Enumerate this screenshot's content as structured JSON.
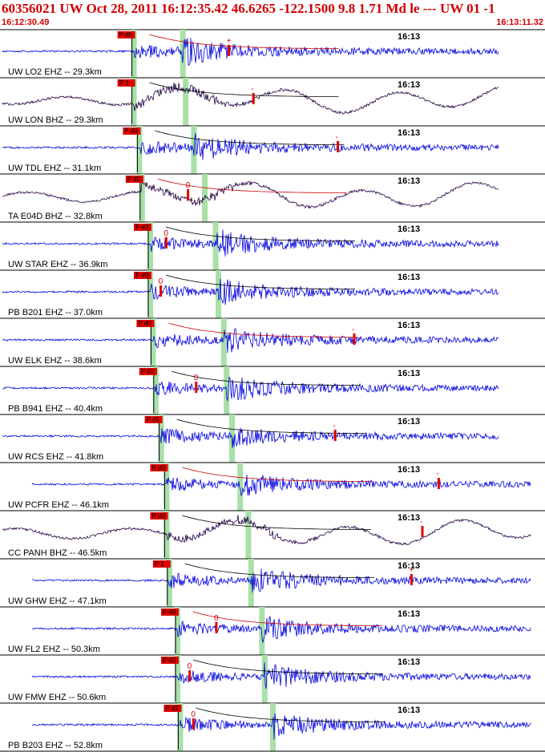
{
  "header": {
    "title": "60356021 UW Oct 28, 2011 16:12:35.42    46.6265 -122.1500  9.8 1.71 Md le --- UW 01  -1",
    "start_time": "16:12:30.49",
    "end_time": "16:13:11.32"
  },
  "colors": {
    "header_red": "#d00000",
    "trace_blue": "#0000dd",
    "trace_bb": "#220044",
    "arrival_green": "#a8e0a8"
  },
  "traces": [
    {
      "label": "UW LO2 EHZ -- 29.3km",
      "tick": "16:13",
      "p_label": "P d0",
      "pick_mark": "+",
      "bb": false,
      "p": 0.245,
      "s": 0.335,
      "amp": 0.55,
      "pickx": 0.42
    },
    {
      "label": "UW LON BHZ -- 29.3km",
      "tick": "16:13",
      "p_label": "P 1",
      "pick_mark": "-",
      "bb": true,
      "p": 0.245,
      "s": 0.34,
      "amp": 0.35,
      "pickx": 0.465
    },
    {
      "label": "UW TDL EHZ -- 31.1km",
      "tick": "16:13",
      "p_label": "P d0",
      "pick_mark": "-",
      "bb": false,
      "p": 0.255,
      "s": 0.355,
      "amp": 0.6,
      "pickx": 0.62
    },
    {
      "label": "TA E04D BHZ -- 32.8km",
      "tick": "16:13",
      "p_label": "P d2",
      "pick_mark": "0",
      "bb": true,
      "p": 0.26,
      "s": 0.375,
      "amp": 0.55,
      "pickx": 0.345
    },
    {
      "label": "UW STAR EHZ -- 36.9km",
      "tick": "16:13",
      "p_label": "P d2",
      "pick_mark": "0",
      "bb": false,
      "p": 0.275,
      "s": 0.395,
      "amp": 0.6,
      "pickx": 0.305
    },
    {
      "label": "PB B201 EHZ -- 37.0km",
      "tick": "16:13",
      "p_label": "P d0",
      "pick_mark": "0",
      "bb": false,
      "p": 0.275,
      "s": 0.4,
      "amp": 0.55,
      "pickx": 0.295
    },
    {
      "label": "UW ELK EHZ -- 38.6km",
      "tick": "16:13",
      "p_label": "P d0",
      "pick_mark": "-",
      "bb": false,
      "p": 0.28,
      "s": 0.41,
      "amp": 0.55,
      "pickx": 0.65
    },
    {
      "label": "PB B941 EHZ -- 40.4km",
      "tick": "16:13",
      "p_label": "P d1",
      "pick_mark": "0",
      "bb": false,
      "p": 0.285,
      "s": 0.415,
      "amp": 0.6,
      "pickx": 0.36
    },
    {
      "label": "UW RCS EHZ -- 41.8km",
      "tick": "16:13",
      "p_label": "P d1",
      "pick_mark": "-",
      "bb": false,
      "p": 0.295,
      "s": 0.425,
      "amp": 0.4,
      "pickx": 0.615
    },
    {
      "label": "UW PCFR EHZ -- 46.1km",
      "tick": "16:13",
      "p_label": "P d0",
      "pick_mark": "-",
      "bb": false,
      "p": 0.305,
      "s": 0.44,
      "amp": 0.45,
      "pickx": 0.805
    },
    {
      "label": "CC PANH BHZ -- 46.5km",
      "tick": "16:13",
      "p_label": "P d0",
      "pick_mark": "-",
      "bb": true,
      "p": 0.305,
      "s": 0.455,
      "amp": 0.5,
      "pickx": 0.775
    },
    {
      "label": "UW GHW EHZ -- 47.1km",
      "tick": "16:13",
      "p_label": "P 1",
      "pick_mark": "+",
      "bb": false,
      "p": 0.31,
      "s": 0.46,
      "amp": 0.65,
      "pickx": 0.755
    },
    {
      "label": "UW FL2 EHZ -- 50.3km",
      "tick": "16:13",
      "p_label": "P d0",
      "pick_mark": "0",
      "bb": false,
      "p": 0.325,
      "s": 0.48,
      "amp": 0.55,
      "pickx": 0.397
    },
    {
      "label": "UW FMW EHZ -- 50.6km",
      "tick": "16:13",
      "p_label": "P d2",
      "pick_mark": "0",
      "bb": false,
      "p": 0.325,
      "s": 0.485,
      "amp": 0.6,
      "pickx": 0.348
    },
    {
      "label": "PB B203 EHZ -- 52.8km",
      "tick": "16:13",
      "p_label": "P d2",
      "pick_mark": "0",
      "bb": false,
      "p": 0.33,
      "s": 0.5,
      "amp": 0.6,
      "pickx": 0.355
    }
  ]
}
